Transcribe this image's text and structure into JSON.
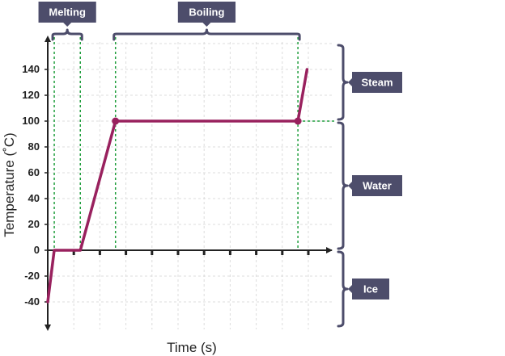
{
  "chart_data": {
    "type": "line",
    "xlabel": "Time (s)",
    "ylabel": "Temperature (˚C)",
    "ylim": [
      -60,
      160
    ],
    "yticks": [
      -40,
      -20,
      0,
      20,
      40,
      60,
      80,
      100,
      120,
      140
    ],
    "grid": true,
    "series": [
      {
        "color": "#99215e",
        "x": [
          0,
          0.25,
          1.25,
          2.6,
          9.6,
          9.95
        ],
        "values": [
          -40,
          0,
          0,
          100,
          100,
          140
        ]
      }
    ],
    "markers": [
      {
        "x": 2.6,
        "y": 100
      },
      {
        "x": 9.6,
        "y": 100
      }
    ],
    "ranges": [
      {
        "label": "Melting",
        "x_start": 0.25,
        "x_end": 1.25
      },
      {
        "label": "Boiling",
        "x_start": 2.6,
        "x_end": 9.6
      }
    ],
    "states": [
      {
        "label": "Steam",
        "y_start": 100,
        "y_end": 160
      },
      {
        "label": "Water",
        "y_start": 0,
        "y_end": 100
      },
      {
        "label": "Ice",
        "y_start": -60,
        "y_end": 0
      }
    ]
  },
  "colors": {
    "line": "#99215e",
    "label_box": "#4d4d6b",
    "guide": "#1f9e3c",
    "grid": "#dcdcdc"
  }
}
